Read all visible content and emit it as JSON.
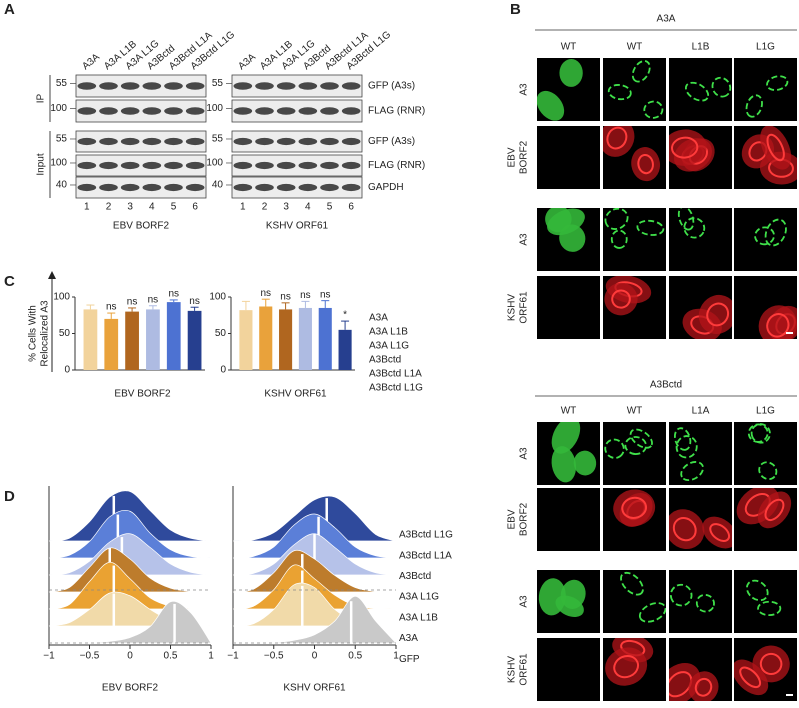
{
  "panel_a": {
    "label": "A",
    "lanes": [
      "A3A",
      "A3A L1B",
      "A3A L1G",
      "A3Bctd",
      "A3Bctd L1A",
      "A3Bctd L1G"
    ],
    "lane_numbers": [
      "1",
      "2",
      "3",
      "4",
      "5",
      "6"
    ],
    "groups": [
      "IP",
      "Input"
    ],
    "rows": [
      {
        "antibody": "GFP (A3s)",
        "mw": 55
      },
      {
        "antibody": "FLAG (RNR)",
        "mw": 100
      },
      {
        "antibody": "GFP (A3s)",
        "mw": 55
      },
      {
        "antibody": "FLAG (RNR)",
        "mw": 100
      },
      {
        "antibody": "GAPDH",
        "mw": 40
      }
    ],
    "blots": [
      "EBV BORF2",
      "KSHV ORF61"
    ]
  },
  "panel_b": {
    "label": "B",
    "sections": [
      {
        "title": "A3A",
        "columns": [
          "WT",
          "WT",
          "L1B",
          "L1G"
        ],
        "rows": [
          [
            "A3"
          ],
          [
            "EBV",
            "BORF2"
          ],
          [
            "A3"
          ],
          [
            "KSHV",
            "ORF61"
          ]
        ]
      },
      {
        "title": "A3Bctd",
        "columns": [
          "WT",
          "WT",
          "L1A",
          "L1G"
        ],
        "rows": [
          [
            "A3"
          ],
          [
            "EBV",
            "BORF2"
          ],
          [
            "A3"
          ],
          [
            "KSHV",
            "ORF61"
          ]
        ]
      }
    ]
  },
  "panel_c": {
    "label": "C"
  },
  "panel_d": {
    "label": "D"
  },
  "chart_data": [
    {
      "type": "bar",
      "title": "EBV BORF2",
      "ylabel": [
        "% Cells With",
        "Relocalized A3"
      ],
      "categories": [
        "A3A",
        "A3A L1B",
        "A3A L1G",
        "A3Bctd",
        "A3Bctd L1A",
        "A3Bctd L1G"
      ],
      "colors": [
        "#f2d39c",
        "#e9a23b",
        "#b0661f",
        "#aebbe2",
        "#4d72d2",
        "#263f8f"
      ],
      "values": [
        83,
        70,
        80,
        83,
        93,
        81
      ],
      "errors": [
        6,
        8,
        5,
        5,
        3,
        5
      ],
      "annotations": [
        null,
        "ns",
        "ns",
        "ns",
        "ns",
        "ns"
      ],
      "ylim": [
        0,
        100
      ],
      "yticks": [
        0,
        50,
        100
      ]
    },
    {
      "type": "bar",
      "title": "KSHV ORF61",
      "colors": [
        "#f2d39c",
        "#e9a23b",
        "#b0661f",
        "#aebbe2",
        "#4d72d2",
        "#263f8f"
      ],
      "values": [
        82,
        87,
        83,
        85,
        85,
        55
      ],
      "errors": [
        12,
        10,
        9,
        9,
        10,
        12
      ],
      "annotations": [
        null,
        "ns",
        "ns",
        "ns",
        "ns",
        "*"
      ],
      "ylim": [
        0,
        100
      ],
      "yticks": [
        0,
        50,
        100
      ]
    },
    {
      "type": "ridgeline",
      "title": "EBV BORF2",
      "x": [
        -1,
        -0.75,
        -0.5,
        -0.25,
        0,
        0.25,
        0.5,
        0.75,
        1
      ],
      "xlim": [
        -1,
        1
      ],
      "xticks": [
        {
          "value": -1,
          "label": "−1"
        },
        {
          "value": -0.5,
          "label": "−0.5"
        },
        0,
        0.5,
        1
      ],
      "series": [
        {
          "color": "#2f4a9c",
          "median": -0.2,
          "density": [
            0,
            0.05,
            0.35,
            0.8,
            0.9,
            0.55,
            0.2,
            0.05,
            0
          ]
        },
        {
          "color": "#5b7fd8",
          "median": -0.15,
          "density": [
            0,
            0.05,
            0.3,
            0.75,
            0.85,
            0.45,
            0.15,
            0.03,
            0
          ]
        },
        {
          "color": "#b6c2e9",
          "median": -0.1,
          "density": [
            0,
            0.04,
            0.25,
            0.6,
            0.75,
            0.5,
            0.2,
            0.05,
            0
          ]
        },
        {
          "color": "#bd7c2c",
          "median": -0.25,
          "density": [
            0,
            0.08,
            0.45,
            0.8,
            0.6,
            0.25,
            0.07,
            0.01,
            0
          ]
        },
        {
          "color": "#eaa232",
          "median": -0.2,
          "density": [
            0,
            0.08,
            0.5,
            0.85,
            0.55,
            0.2,
            0.05,
            0.01,
            0
          ]
        },
        {
          "color": "#f1daa9",
          "median": -0.2,
          "density": [
            0,
            0.06,
            0.3,
            0.6,
            0.55,
            0.3,
            0.1,
            0.02,
            0
          ]
        },
        {
          "color": "#c9c9c9",
          "median": 0.55,
          "density": [
            0,
            0,
            0.01,
            0.03,
            0.1,
            0.3,
            0.75,
            0.55,
            0
          ]
        }
      ]
    },
    {
      "type": "ridgeline",
      "title": "KSHV ORF61",
      "x": [
        -1,
        -0.75,
        -0.5,
        -0.25,
        0,
        0.25,
        0.5,
        0.75,
        1
      ],
      "xlim": [
        -1,
        1
      ],
      "xticks": [
        {
          "value": -1,
          "label": "−1"
        },
        {
          "value": -0.5,
          "label": "−0.5"
        },
        0,
        0.5,
        1
      ],
      "series": [
        {
          "name": "A3Bctd L1G",
          "color": "#2f4a9c",
          "median": 0.15,
          "density": [
            0,
            0.02,
            0.15,
            0.45,
            0.75,
            0.8,
            0.5,
            0.12,
            0
          ]
        },
        {
          "name": "A3Bctd L1A",
          "color": "#5b7fd8",
          "median": 0.05,
          "density": [
            0,
            0.03,
            0.2,
            0.6,
            0.8,
            0.55,
            0.2,
            0.04,
            0
          ]
        },
        {
          "name": "A3Bctd",
          "color": "#b6c2e9",
          "median": 0,
          "density": [
            0,
            0.03,
            0.2,
            0.55,
            0.75,
            0.5,
            0.2,
            0.04,
            0
          ]
        },
        {
          "name": "A3A L1G",
          "color": "#bd7c2c",
          "median": -0.15,
          "density": [
            0,
            0.05,
            0.35,
            0.75,
            0.6,
            0.3,
            0.08,
            0.01,
            0
          ]
        },
        {
          "name": "A3A L1B",
          "color": "#eaa232",
          "median": -0.15,
          "density": [
            0,
            0.05,
            0.35,
            0.8,
            0.55,
            0.25,
            0.06,
            0.01,
            0
          ]
        },
        {
          "name": "A3A",
          "color": "#f1daa9",
          "median": -0.15,
          "density": [
            0,
            0.04,
            0.3,
            0.75,
            0.7,
            0.3,
            0.08,
            0.01,
            0
          ]
        },
        {
          "name": "GFP",
          "color": "#c9c9c9",
          "median": 0.45,
          "density": [
            0,
            0,
            0.01,
            0.05,
            0.15,
            0.4,
            0.85,
            0.4,
            0
          ]
        }
      ]
    }
  ]
}
